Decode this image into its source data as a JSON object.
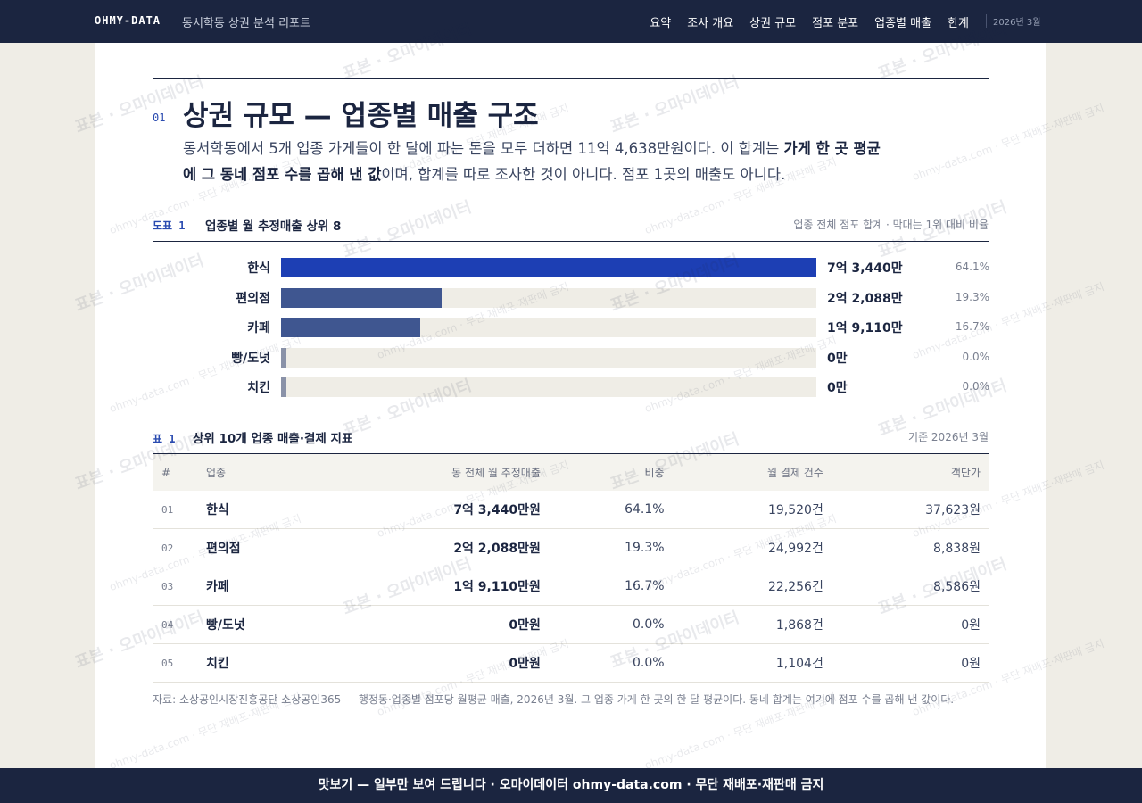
{
  "header": {
    "brand": "OHMY-DATA",
    "report_title": "동서학동 상권 분석 리포트",
    "menu": [
      "요약",
      "조사 개요",
      "상권 규모",
      "점포 분포",
      "업종별 매출",
      "한계"
    ],
    "date": "2026년 3월"
  },
  "section": {
    "number": "01",
    "title": "상권 규모 — 업종별 매출 구조",
    "lead": [
      "동서학동에서 5개 업종 가게들이 한 달에 파는 돈을 모두 더하면 11억 4,638만원이다. 이 합계는 ",
      "가게 한 곳 평균에 그 동네 점포 수를 곱해 낸 값",
      "이며, 합계를 따로 조사한 것이 아니다. 점포 1곳의 매출도 아니다."
    ]
  },
  "figure": {
    "label": "도표 1",
    "title": "업종별 월 추정매출 상위 8",
    "note": "업종 전체 점포 합계 · 막대는 1위 대비 비율",
    "type": "bar",
    "categories": [
      "한식",
      "편의점",
      "카페",
      "빵/도넛",
      "치킨"
    ],
    "values": [
      73440,
      22088,
      19110,
      0,
      0
    ],
    "value_labels": [
      "7억 3,440만",
      "2억 2,088만",
      "1억 9,110만",
      "0만",
      "0만"
    ],
    "shares": [
      64.1,
      19.3,
      16.7,
      0,
      0
    ],
    "share_labels": [
      "64.1%",
      "19.3%",
      "16.7%",
      "0.0%",
      "0.0%"
    ],
    "colors": [
      "#1d3fb4",
      "#3f5690",
      "#3f5690",
      "#8a92a8",
      "#8a92a8"
    ]
  },
  "table": {
    "label": "표 1",
    "title": "상위 10개 업종 매출·결제 지표",
    "basis": "기준 2026년 3월",
    "headers": [
      "#",
      "업종",
      "동 전체 월 추정매출",
      "비중",
      "월 결제 건수",
      "객단가"
    ],
    "rows": [
      [
        "01",
        "한식",
        "7억 3,440만원",
        "64.1%",
        "19,520건",
        "37,623원"
      ],
      [
        "02",
        "편의점",
        "2억 2,088만원",
        "19.3%",
        "24,992건",
        "8,838원"
      ],
      [
        "03",
        "카페",
        "1억 9,110만원",
        "16.7%",
        "22,256건",
        "8,586원"
      ],
      [
        "04",
        "빵/도넛",
        "0만원",
        "0.0%",
        "1,868건",
        "0원"
      ],
      [
        "05",
        "치킨",
        "0만원",
        "0.0%",
        "1,104건",
        "0원"
      ]
    ]
  },
  "source": "자료: 소상공인시장진흥공단 소상공인365 — 행정동·업종별 점포당 월평균 매출, 2026년 3월. 그 업종 가게 한 곳의 한 달 평균이다. 동네 합계는 여기에 점포 수를 곱해 낸 값이다.",
  "footer": "맛보기 — 일부만 보여 드립니다 · 오마이데이터 ohmy-data.com · 무단 재배포·재판매 금지",
  "watermark": [
    "표본 · 오마이데이터",
    "ohmy-data.com · 무단 재배포·재판매 금지"
  ]
}
